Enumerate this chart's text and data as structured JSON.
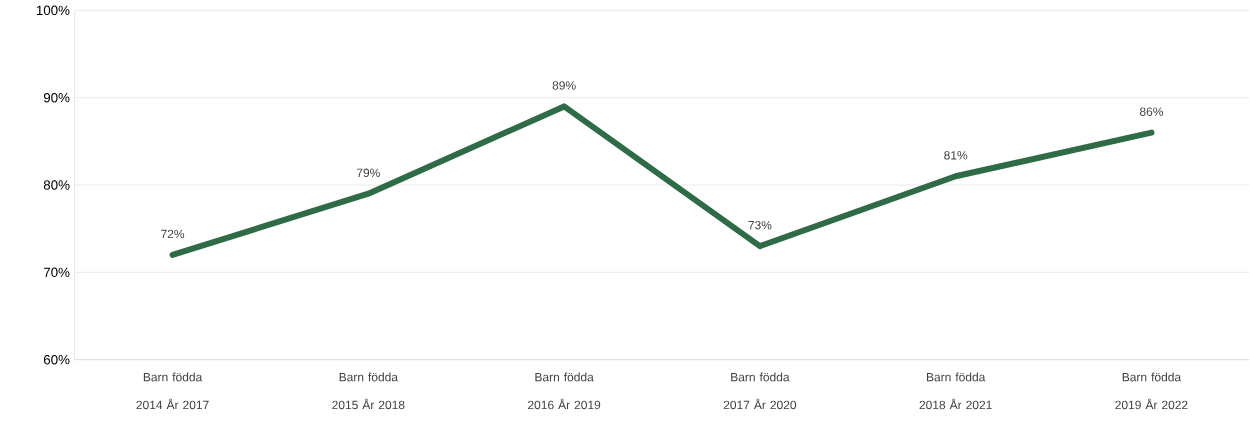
{
  "chart_data": {
    "type": "line",
    "categories": [
      "Barn födda 2014 År 2017",
      "Barn födda 2015 År 2018",
      "Barn födda 2016 År 2019",
      "Barn födda 2017 År 2020",
      "Barn födda 2018 År 2021",
      "Barn födda 2019 År 2022"
    ],
    "values": [
      72,
      79,
      89,
      73,
      81,
      86
    ],
    "value_labels": [
      "72%",
      "79%",
      "89%",
      "73%",
      "81%",
      "86%"
    ],
    "color": "#2e6b46",
    "ylim": [
      60,
      100
    ],
    "yticks": [
      {
        "value": 60,
        "label": "60%"
      },
      {
        "value": 70,
        "label": "70%"
      },
      {
        "value": 80,
        "label": "80%"
      },
      {
        "value": 90,
        "label": "90%"
      },
      {
        "value": 100,
        "label": "100%"
      }
    ],
    "grid": "y"
  }
}
